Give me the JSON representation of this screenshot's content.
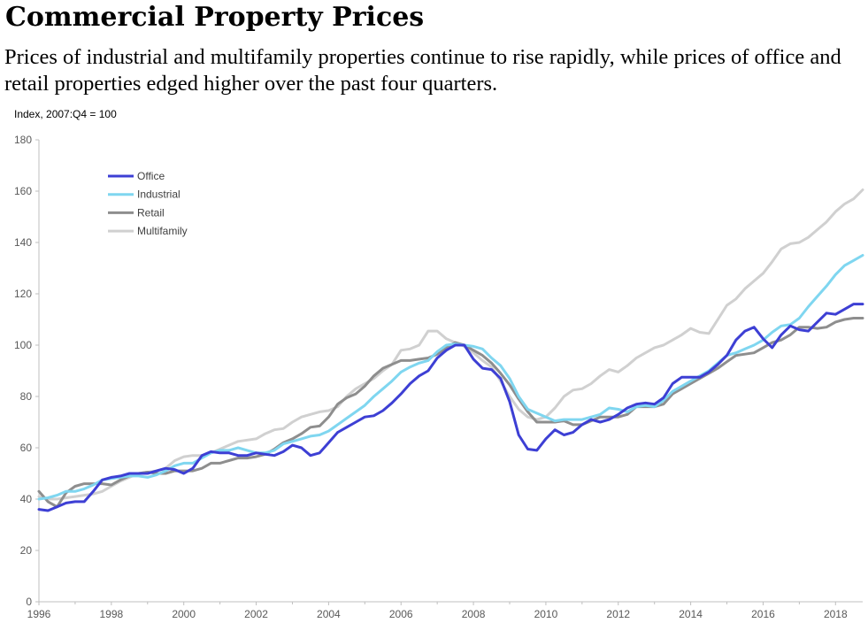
{
  "header": {
    "title": "Commercial Property Prices",
    "subtitle": "Prices of industrial and multifamily properties continue to rise rapidly, while prices of office and retail properties edged higher over the past four quarters.",
    "ylabel": "Index, 2007:Q4 = 100"
  },
  "chart_data": {
    "type": "line",
    "title": "Commercial Property Prices",
    "ylabel": "Index, 2007:Q4 = 100",
    "xlabel": "",
    "xlim": [
      1996,
      2018.75
    ],
    "ylim": [
      0,
      180
    ],
    "x_ticks": [
      1996,
      1998,
      2000,
      2002,
      2004,
      2006,
      2008,
      2010,
      2012,
      2014,
      2016,
      2018
    ],
    "y_ticks": [
      0,
      20,
      40,
      60,
      80,
      100,
      120,
      140,
      160,
      180
    ],
    "grid": false,
    "legend_position": "top-left",
    "x": [
      1996.0,
      1996.25,
      1996.5,
      1996.75,
      1997.0,
      1997.25,
      1997.5,
      1997.75,
      1998.0,
      1998.25,
      1998.5,
      1998.75,
      1999.0,
      1999.25,
      1999.5,
      1999.75,
      2000.0,
      2000.25,
      2000.5,
      2000.75,
      2001.0,
      2001.25,
      2001.5,
      2001.75,
      2002.0,
      2002.25,
      2002.5,
      2002.75,
      2003.0,
      2003.25,
      2003.5,
      2003.75,
      2004.0,
      2004.25,
      2004.5,
      2004.75,
      2005.0,
      2005.25,
      2005.5,
      2005.75,
      2006.0,
      2006.25,
      2006.5,
      2006.75,
      2007.0,
      2007.25,
      2007.5,
      2007.75,
      2008.0,
      2008.25,
      2008.5,
      2008.75,
      2009.0,
      2009.25,
      2009.5,
      2009.75,
      2010.0,
      2010.25,
      2010.5,
      2010.75,
      2011.0,
      2011.25,
      2011.5,
      2011.75,
      2012.0,
      2012.25,
      2012.5,
      2012.75,
      2013.0,
      2013.25,
      2013.5,
      2013.75,
      2014.0,
      2014.25,
      2014.5,
      2014.75,
      2015.0,
      2015.25,
      2015.5,
      2015.75,
      2016.0,
      2016.25,
      2016.5,
      2016.75,
      2017.0,
      2017.25,
      2017.5,
      2017.75,
      2018.0,
      2018.25,
      2018.5,
      2018.75
    ],
    "series": [
      {
        "name": "Office",
        "color": "#3d3fd4",
        "values": [
          36,
          35.5,
          37,
          38.5,
          39,
          39,
          43,
          47.5,
          48.5,
          49,
          50,
          50,
          50,
          51,
          52,
          51.5,
          50,
          52,
          57,
          58.5,
          58,
          58,
          57,
          57,
          58,
          57.5,
          57,
          58.5,
          61,
          60,
          57,
          58,
          62,
          66,
          68,
          70,
          72,
          72.5,
          74.5,
          77.5,
          81,
          85,
          88,
          90,
          95,
          98,
          100,
          100,
          94.5,
          91,
          90.5,
          87,
          78,
          65,
          59.5,
          59,
          63.5,
          67,
          65,
          66,
          69,
          71,
          70,
          71,
          73,
          75.5,
          77,
          77.5,
          77,
          79.5,
          85,
          87.5,
          87.5,
          87.5,
          89.5,
          92.5,
          96,
          102,
          105.5,
          107,
          102.5,
          99,
          104,
          107.5,
          106,
          105.5,
          109,
          112.5,
          112,
          114,
          116,
          116
        ]
      },
      {
        "name": "Industrial",
        "color": "#7fd6f0",
        "values": [
          40,
          40.5,
          41.5,
          43,
          43,
          44,
          45.5,
          47.5,
          48,
          48.5,
          49,
          49,
          48.5,
          49.5,
          51,
          53,
          54,
          54,
          56,
          58,
          59,
          59,
          60,
          59,
          58,
          58,
          59,
          61.5,
          62.5,
          63.5,
          64.5,
          65,
          66.5,
          69,
          71.5,
          74,
          76.5,
          80,
          83,
          86,
          89.5,
          91.5,
          93,
          94,
          97.5,
          100,
          100.5,
          100,
          99.5,
          98.5,
          95,
          92,
          87,
          80,
          75,
          73.5,
          72,
          70.5,
          71,
          71,
          71,
          72,
          73,
          75.5,
          75,
          74,
          76,
          76.5,
          76,
          78.5,
          82,
          84,
          86,
          88,
          90,
          93,
          96,
          97,
          98.5,
          100,
          102,
          105,
          107.5,
          108,
          110.5,
          115,
          119,
          123,
          127.5,
          131,
          133,
          135
        ]
      },
      {
        "name": "Retail",
        "color": "#8e8e8e",
        "values": [
          43,
          39,
          37,
          42.5,
          45,
          46,
          46,
          46,
          45.5,
          47.5,
          49,
          50,
          50.5,
          50,
          50,
          51,
          51,
          51,
          52,
          54,
          54,
          55,
          56,
          56,
          56.5,
          57.5,
          59.5,
          62,
          63.5,
          65.5,
          68,
          68.5,
          72,
          77,
          79.5,
          81,
          84,
          88,
          91,
          92.5,
          94,
          94,
          94.5,
          95,
          96.5,
          99,
          101,
          100,
          98,
          96,
          93,
          89,
          84.5,
          79,
          74,
          70,
          70,
          70,
          70.5,
          69,
          69,
          70.5,
          72,
          72,
          72,
          73,
          76,
          76,
          76,
          77,
          81,
          83,
          85,
          87,
          89,
          91,
          93.5,
          96,
          96.5,
          97,
          99,
          101,
          102,
          104,
          107,
          107,
          106.5,
          107,
          109,
          110,
          110.5,
          110.5
        ]
      },
      {
        "name": "Multifamily",
        "color": "#d0d0d0",
        "values": [
          41,
          40,
          40,
          40.5,
          41,
          41.5,
          42,
          43,
          45,
          47,
          48.5,
          50,
          50.5,
          51,
          52,
          55,
          56.5,
          57,
          57,
          58,
          59.5,
          61,
          62.5,
          63,
          63.5,
          65.5,
          67,
          67.5,
          70,
          72,
          73,
          74,
          74.5,
          76,
          80,
          83,
          85,
          87,
          90,
          92.5,
          98,
          98.5,
          100,
          105.5,
          105.5,
          102.5,
          101,
          99.5,
          97,
          94,
          91.5,
          86,
          80,
          75,
          72,
          71,
          72,
          75.5,
          80,
          82.5,
          83,
          85,
          88,
          90.5,
          89.5,
          92,
          95,
          97,
          99,
          100,
          102,
          104,
          106.5,
          105,
          104.5,
          110,
          115.5,
          118,
          122,
          125,
          128,
          132.5,
          137.5,
          139.5,
          140,
          142,
          145,
          148,
          152,
          155,
          157,
          160.5
        ]
      }
    ]
  }
}
